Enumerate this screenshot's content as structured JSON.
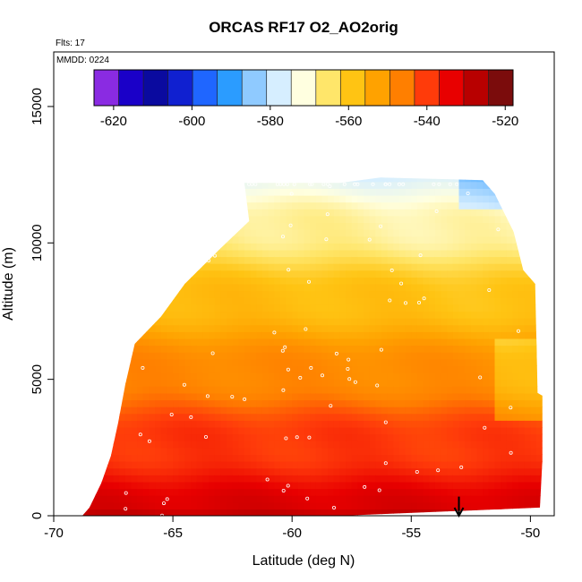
{
  "chart_data": {
    "type": "heatmap",
    "title": "ORCAS RF17 O2_AO2orig",
    "annotations": {
      "flights": "Flts: 17",
      "date": "MMDD: 0224"
    },
    "xlabel": "Latitude (deg N)",
    "ylabel": "Altitude (m)",
    "xlim": [
      -70,
      -49
    ],
    "ylim": [
      0,
      17000
    ],
    "x_ticks": [
      -70,
      -65,
      -60,
      -55,
      -50
    ],
    "x_tick_labels": [
      "-70",
      "-65",
      "-60",
      "-55",
      "-50"
    ],
    "y_ticks": [
      0,
      5000,
      10000,
      15000
    ],
    "y_tick_labels": [
      "0",
      "5000",
      "10000",
      "15000"
    ],
    "colorbar": {
      "range": [
        -625,
        -518
      ],
      "ticks": [
        -620,
        -600,
        -580,
        -560,
        -540,
        -520
      ],
      "tick_labels": [
        "-620",
        "-600",
        "-580",
        "-560",
        "-540",
        "-520"
      ],
      "colors": [
        "#8a2be2",
        "#1a00c8",
        "#0a0a9f",
        "#1020d0",
        "#1f66ff",
        "#2b9cff",
        "#8fcaff",
        "#d6eeff",
        "#ffffe0",
        "#ffe66a",
        "#ffc413",
        "#ffa200",
        "#ff7f00",
        "#ff3b0a",
        "#e80000",
        "#b80000",
        "#7b0c0c"
      ]
    },
    "coverage_boundary": [
      [
        -68.8,
        0
      ],
      [
        -68.5,
        300
      ],
      [
        -68.0,
        1200
      ],
      [
        -67.6,
        2200
      ],
      [
        -67.3,
        3400
      ],
      [
        -67.0,
        4800
      ],
      [
        -66.6,
        6300
      ],
      [
        -65.5,
        7300
      ],
      [
        -64.5,
        8500
      ],
      [
        -63.0,
        9800
      ],
      [
        -61.8,
        10800
      ],
      [
        -62.0,
        12200
      ],
      [
        -58.0,
        12200
      ],
      [
        -56.3,
        12400
      ],
      [
        -52.0,
        12300
      ],
      [
        -51.5,
        11800
      ],
      [
        -50.7,
        10400
      ],
      [
        -50.3,
        9000
      ],
      [
        -49.8,
        8500
      ],
      [
        -49.7,
        4500
      ],
      [
        -49.5,
        4400
      ],
      [
        -49.5,
        2000
      ],
      [
        -49.6,
        300
      ],
      [
        -57.9,
        0
      ]
    ],
    "value_model": {
      "surface_value": -530,
      "upper_value": -575,
      "note_lowest_layer_value": -527
    },
    "markers": [
      {
        "type": "arrow-down",
        "x": -53,
        "y_top": 700,
        "y_bottom": 0
      }
    ]
  }
}
